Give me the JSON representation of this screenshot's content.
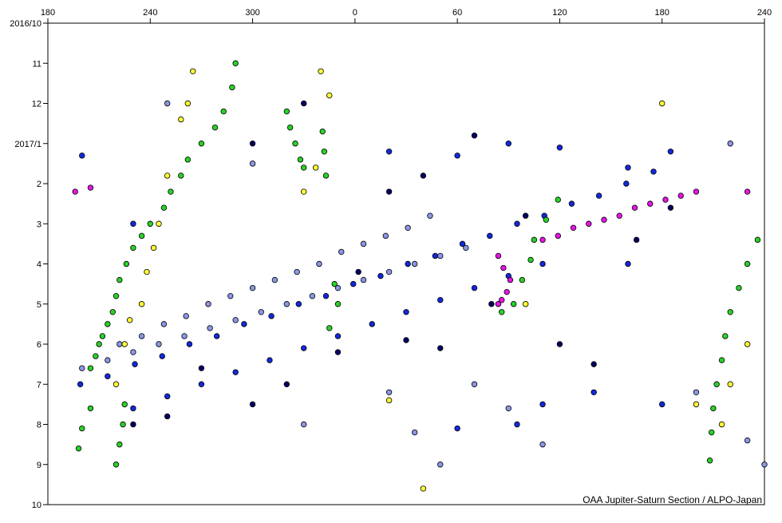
{
  "chart_data": {
    "type": "scatter",
    "credit": "OAA Jupiter-Saturn Section / ALPO-Japan",
    "xlim": [
      180,
      600
    ],
    "xticks": [
      180,
      240,
      300,
      {
        "value": 360,
        "label": "0"
      },
      {
        "value": 420,
        "label": "60"
      },
      {
        "value": 480,
        "label": "120"
      },
      {
        "value": 540,
        "label": "180"
      },
      {
        "value": 600,
        "label": "240"
      }
    ],
    "ylim": [
      12,
      0
    ],
    "yticks": [
      {
        "value": 0,
        "label": "2016/10"
      },
      {
        "value": 1,
        "label": "11"
      },
      {
        "value": 2,
        "label": "12"
      },
      {
        "value": 3,
        "label": "2017/1"
      },
      {
        "value": 4,
        "label": "2"
      },
      {
        "value": 5,
        "label": "3"
      },
      {
        "value": 6,
        "label": "4"
      },
      {
        "value": 7,
        "label": "5"
      },
      {
        "value": 8,
        "label": "6"
      },
      {
        "value": 9,
        "label": "7"
      },
      {
        "value": 10,
        "label": "8"
      },
      {
        "value": 11,
        "label": "9"
      },
      {
        "value": 12,
        "label": "10"
      }
    ],
    "series": [
      {
        "color": "#8c96e6",
        "x": [
          222,
          235,
          248,
          261,
          274,
          287,
          300,
          313,
          326,
          339,
          352,
          365,
          378,
          391,
          404,
          200,
          215,
          230,
          245,
          260,
          275,
          290,
          305,
          320,
          335,
          350,
          365,
          380,
          395,
          410,
          425,
          380,
          395,
          410,
          430,
          450,
          600,
          560,
          590,
          250,
          580,
          470,
          330,
          300
        ],
        "values": [
          8.0,
          7.8,
          7.5,
          7.3,
          7.0,
          6.8,
          6.6,
          6.4,
          6.2,
          6.0,
          5.7,
          5.5,
          5.3,
          5.1,
          4.8,
          8.6,
          8.4,
          8.2,
          8.0,
          7.8,
          7.6,
          7.4,
          7.2,
          7.0,
          6.8,
          6.6,
          6.4,
          6.2,
          6.0,
          5.8,
          5.6,
          9.2,
          10.2,
          11.0,
          9.0,
          9.6,
          11.0,
          9.2,
          10.4,
          2.0,
          3.0,
          10.5,
          10.0,
          3.5
        ]
      },
      {
        "color": "#1428dc",
        "x": [
          199,
          215,
          231,
          247,
          263,
          279,
          295,
          311,
          327,
          343,
          359,
          375,
          391,
          407,
          423,
          439,
          455,
          471,
          487,
          503,
          519,
          535,
          230,
          250,
          270,
          290,
          310,
          330,
          350,
          370,
          390,
          410,
          430,
          450,
          470,
          380,
          420,
          450,
          480,
          520,
          545,
          455,
          470,
          500,
          420,
          200,
          230,
          520,
          540
        ],
        "values": [
          9.0,
          8.8,
          8.5,
          8.3,
          8.0,
          7.8,
          7.5,
          7.3,
          7.0,
          6.8,
          6.5,
          6.3,
          6.0,
          5.8,
          5.5,
          5.3,
          5.0,
          4.8,
          4.5,
          4.3,
          4.0,
          3.7,
          9.6,
          9.3,
          9.0,
          8.7,
          8.4,
          8.1,
          7.8,
          7.5,
          7.2,
          6.9,
          6.6,
          6.3,
          6.0,
          3.2,
          3.3,
          3.0,
          3.1,
          3.6,
          3.2,
          10.0,
          9.5,
          9.2,
          10.1,
          3.3,
          5.0,
          6.0,
          9.5
        ]
      },
      {
        "color": "#000064",
        "x": [
          300,
          330,
          380,
          400,
          430,
          460,
          480,
          500,
          350,
          320,
          270,
          250,
          230,
          440,
          410,
          525,
          545,
          300,
          362,
          390
        ],
        "values": [
          3.0,
          2.0,
          4.2,
          3.8,
          2.8,
          4.8,
          8.0,
          8.5,
          8.2,
          9.0,
          8.6,
          9.8,
          10.0,
          7.0,
          8.1,
          5.4,
          4.6,
          9.5,
          6.2,
          7.9
        ]
      },
      {
        "color": "#28d228",
        "x": [
          290,
          288,
          283,
          278,
          270,
          262,
          258,
          252,
          248,
          240,
          235,
          230,
          226,
          222,
          220,
          218,
          215,
          212,
          210,
          208,
          205,
          225,
          224,
          222,
          220,
          205,
          200,
          198,
          596,
          590,
          585,
          580,
          577,
          575,
          572,
          570,
          569,
          568,
          479,
          472,
          465,
          463,
          458,
          453,
          446,
          320,
          322,
          325,
          328,
          330,
          341,
          342,
          343,
          348,
          350,
          345
        ],
        "values": [
          1.0,
          1.6,
          2.2,
          2.6,
          3.0,
          3.4,
          3.8,
          4.2,
          4.6,
          5.0,
          5.3,
          5.6,
          6.0,
          6.4,
          6.8,
          7.2,
          7.5,
          7.8,
          8.0,
          8.3,
          8.6,
          9.5,
          10.0,
          10.5,
          11.0,
          9.6,
          10.1,
          10.6,
          5.4,
          6.0,
          6.6,
          7.2,
          7.8,
          8.4,
          9.0,
          9.6,
          10.2,
          10.9,
          4.4,
          4.9,
          5.4,
          5.9,
          6.4,
          7.0,
          7.2,
          2.2,
          2.6,
          3.0,
          3.4,
          3.6,
          2.7,
          3.2,
          3.8,
          6.5,
          7.0,
          7.6
        ]
      },
      {
        "color": "#ffff32",
        "x": [
          265,
          262,
          258,
          250,
          245,
          242,
          238,
          235,
          228,
          225,
          220,
          340,
          345,
          337,
          330,
          460,
          590,
          580,
          575,
          560,
          540,
          380,
          400
        ],
        "values": [
          1.2,
          2.0,
          2.4,
          3.8,
          5.0,
          5.6,
          6.2,
          7.0,
          7.4,
          8.0,
          9.0,
          1.2,
          1.8,
          3.6,
          4.2,
          7.0,
          8.0,
          9.0,
          10.0,
          9.5,
          2.0,
          9.4,
          11.6
        ]
      },
      {
        "color": "#e614e6",
        "x": [
          444,
          447,
          451,
          449,
          446,
          444,
          470,
          479,
          488,
          497,
          506,
          515,
          524,
          533,
          542,
          551,
          560,
          196,
          205,
          590
        ],
        "values": [
          5.8,
          6.1,
          6.4,
          6.7,
          6.9,
          7.0,
          5.4,
          5.3,
          5.1,
          5.0,
          4.9,
          4.8,
          4.6,
          4.5,
          4.4,
          4.3,
          4.2,
          4.2,
          4.1,
          4.2
        ]
      }
    ]
  }
}
